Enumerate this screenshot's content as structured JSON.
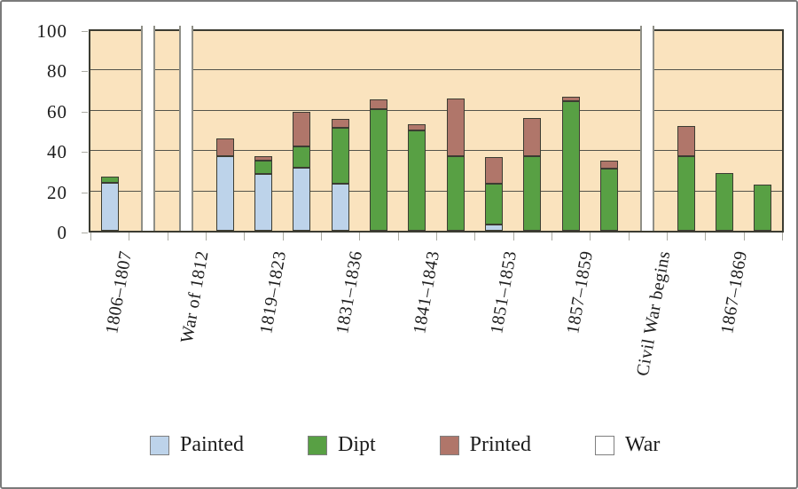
{
  "chart_data": {
    "type": "bar",
    "stacked": true,
    "title": "",
    "xlabel": "",
    "ylabel": "",
    "ylim": [
      0,
      100
    ],
    "y_ticks": [
      0,
      20,
      40,
      60,
      80,
      100
    ],
    "grid": "horizontal",
    "legend_position": "bottom",
    "categories": [
      "1806–1807",
      "",
      "War of 1812",
      "",
      "1819–1823",
      "",
      "1831–1836",
      "",
      "1841–1843",
      "",
      "1851–1853",
      "",
      "1857–1859",
      "",
      "Civil War begins",
      "",
      "1867–1869",
      ""
    ],
    "series": [
      {
        "name": "Painted",
        "color": "#bdd3ea",
        "values": [
          24,
          0,
          0,
          37,
          28,
          31.5,
          23.5,
          0,
          0,
          0,
          3,
          0,
          0,
          0,
          0,
          0,
          0,
          0
        ]
      },
      {
        "name": "Dipt",
        "color": "#58a044",
        "values": [
          3,
          0,
          0,
          0,
          7,
          10.5,
          27.5,
          60.5,
          50,
          37,
          20.5,
          37,
          64.5,
          31,
          0,
          37,
          28.5,
          23
        ]
      },
      {
        "name": "Printed",
        "color": "#b0766a",
        "values": [
          0,
          0,
          0,
          9,
          2,
          17,
          4.5,
          4.5,
          3,
          28.5,
          13,
          19,
          2,
          4,
          0,
          15,
          0,
          0
        ]
      },
      {
        "name": "War",
        "color": "#ffffff",
        "values": [
          0,
          100,
          100,
          0,
          0,
          0,
          0,
          0,
          0,
          0,
          0,
          0,
          0,
          0,
          100,
          0,
          0,
          0
        ]
      }
    ],
    "annotations": []
  },
  "colors": {
    "plot_background": "#fae3be",
    "axis_border": "#3c3c32",
    "gridline": "#54544a",
    "tick": "#ababa3",
    "war_bar_border": "#8f8f87",
    "text": "#1c1c1c",
    "canvas_border": "#7a7a7a"
  },
  "legend": {
    "items": [
      {
        "label": "Painted"
      },
      {
        "label": "Dipt"
      },
      {
        "label": "Printed"
      },
      {
        "label": "War"
      }
    ]
  }
}
